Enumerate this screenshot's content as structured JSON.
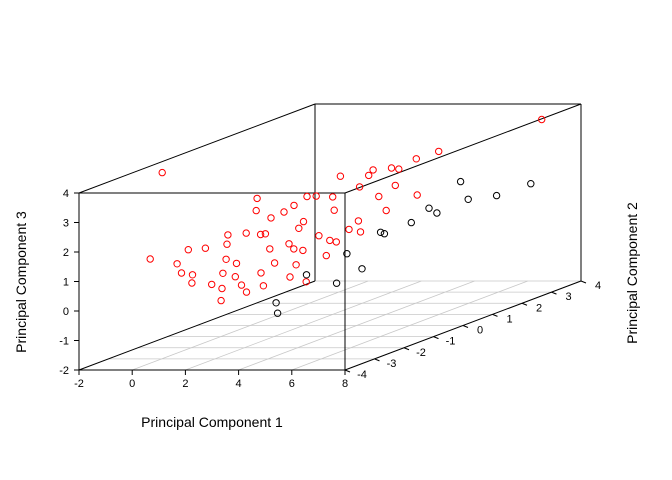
{
  "chart_data": {
    "type": "scatter3d",
    "title": "",
    "xlabel": "Principal Component 1",
    "ylabel": "Principal Component 2",
    "zlabel": "Principal Component 3",
    "xlim": [
      -2,
      8
    ],
    "ylim": [
      -4,
      4
    ],
    "zlim": [
      -2,
      4
    ],
    "x_ticks": [
      "-2",
      "0",
      "2",
      "4",
      "6",
      "8"
    ],
    "y_ticks": [
      "-4",
      "-3",
      "-2",
      "-1",
      "0",
      "1",
      "2",
      "3",
      "4"
    ],
    "z_ticks": [
      "-2",
      "-1",
      "0",
      "1",
      "2",
      "3",
      "4"
    ],
    "grid": true,
    "legend": "none",
    "series": [
      {
        "color": "#ff0000",
        "points": [
          [
            -1.2,
            -1.9,
            3.9
          ],
          [
            6.3,
            4.2,
            3.4
          ],
          [
            -0.1,
            -3.3,
            1.5
          ],
          [
            1.3,
            -3.5,
            1.1
          ],
          [
            1.6,
            -3.4,
            1.0
          ],
          [
            1.8,
            -3.6,
            0.8
          ],
          [
            2.1,
            -3.2,
            0.6
          ],
          [
            2.6,
            -3.3,
            0.5
          ],
          [
            3.0,
            -3.0,
            0.5
          ],
          [
            3.3,
            -3.1,
            0.3
          ],
          [
            3.6,
            -2.8,
            0.4
          ],
          [
            1.2,
            -2.6,
            1.6
          ],
          [
            1.9,
            -2.5,
            1.7
          ],
          [
            2.4,
            -2.3,
            2.0
          ],
          [
            2.9,
            -2.1,
            1.9
          ],
          [
            3.4,
            -2.4,
            1.5
          ],
          [
            3.9,
            -2.2,
            1.6
          ],
          [
            4.3,
            -2.4,
            1.5
          ],
          [
            4.8,
            -2.0,
            1.8
          ],
          [
            5.1,
            -1.9,
            1.6
          ],
          [
            5.6,
            -1.7,
            1.9
          ],
          [
            2.0,
            -1.6,
            2.5
          ],
          [
            2.6,
            -1.2,
            2.3
          ],
          [
            3.2,
            -1.4,
            2.6
          ],
          [
            3.7,
            -1.1,
            2.8
          ],
          [
            4.1,
            -0.9,
            2.7
          ],
          [
            4.6,
            -1.3,
            2.4
          ],
          [
            5.0,
            -0.8,
            3.0
          ],
          [
            5.5,
            -0.6,
            2.6
          ],
          [
            5.9,
            -0.4,
            2.9
          ],
          [
            3.5,
            -0.1,
            3.1
          ],
          [
            4.4,
            0.2,
            3.2
          ],
          [
            5.2,
            0.1,
            3.3
          ],
          [
            5.8,
            0.4,
            3.5
          ],
          [
            6.2,
            0.8,
            3.6
          ],
          [
            4.0,
            -1.8,
            2.2
          ],
          [
            3.0,
            -2.0,
            2.4
          ],
          [
            2.2,
            -2.8,
            1.3
          ],
          [
            2.7,
            -2.9,
            1.2
          ],
          [
            3.8,
            -2.6,
            1.1
          ],
          [
            4.5,
            -2.5,
            1.0
          ],
          [
            5.3,
            -2.2,
            1.2
          ],
          [
            4.9,
            -1.5,
            1.4
          ],
          [
            3.6,
            -1.6,
            1.9
          ],
          [
            2.5,
            -1.9,
            1.8
          ],
          [
            1.6,
            -2.2,
            1.9
          ],
          [
            1.0,
            -3.0,
            1.7
          ],
          [
            0.8,
            -3.2,
            1.3
          ],
          [
            2.3,
            -3.0,
            0.9
          ],
          [
            3.4,
            -2.7,
            0.8
          ],
          [
            4.2,
            -2.0,
            1.3
          ],
          [
            5.4,
            -1.2,
            2.0
          ],
          [
            6.0,
            -0.8,
            2.2
          ],
          [
            6.5,
            -0.2,
            2.5
          ],
          [
            4.7,
            0.8,
            3.0
          ],
          [
            3.9,
            0.5,
            2.9
          ],
          [
            2.8,
            -0.6,
            2.6
          ],
          [
            5.7,
            -1.4,
            1.7
          ],
          [
            1.7,
            -1.3,
            2.8
          ],
          [
            2.9,
            -3.6,
            0.2
          ],
          [
            3.1,
            -3.3,
            0.9
          ],
          [
            4.6,
            -2.8,
            0.7
          ],
          [
            5.1,
            -2.7,
            0.5
          ]
        ]
      },
      {
        "color": "#000000",
        "points": [
          [
            7.0,
            3.2,
            1.6
          ],
          [
            6.6,
            2.4,
            1.5
          ],
          [
            6.2,
            1.8,
            1.6
          ],
          [
            5.8,
            1.1,
            1.4
          ],
          [
            5.5,
            0.5,
            1.3
          ],
          [
            5.6,
            -0.5,
            1.3
          ],
          [
            5.3,
            -1.5,
            1.0
          ],
          [
            6.2,
            -1.8,
            0.6
          ],
          [
            5.8,
            -2.3,
            0.3
          ],
          [
            4.3,
            -3.0,
            -0.1
          ],
          [
            4.8,
            -3.4,
            -0.3
          ],
          [
            5.0,
            -2.6,
            0.7
          ],
          [
            6.5,
            0.2,
            1.9
          ],
          [
            6.8,
            1.0,
            2.5
          ],
          [
            5.9,
            -0.9,
            1.5
          ]
        ]
      }
    ]
  }
}
